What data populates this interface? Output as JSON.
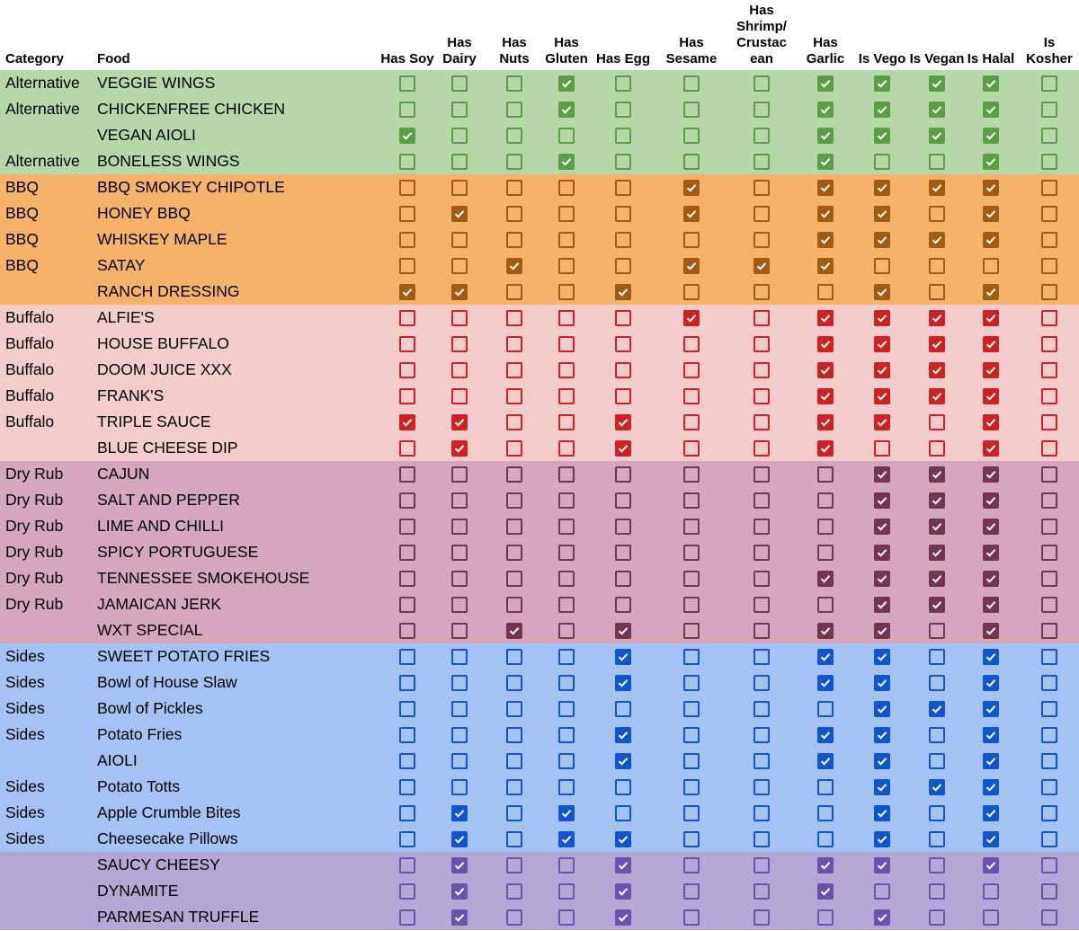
{
  "table": {
    "header": {
      "category": "Category",
      "food": "Food",
      "columns": [
        "Has Soy",
        "Has Dairy",
        "Has Nuts",
        "Has Gluten",
        "Has Egg",
        "Has Sesame",
        "Has Shrimp/Crustac ean",
        "Has Garlic",
        "Is Vego",
        "Is Vegan",
        "Is Halal",
        "Is Kosher"
      ]
    },
    "groups": [
      {
        "color": "#b6d7a8",
        "check_color": "#5a9e46",
        "rows": [
          {
            "category": "Alternative",
            "food": "VEGGIE WINGS",
            "checks": [
              0,
              0,
              0,
              1,
              0,
              0,
              0,
              1,
              1,
              1,
              1,
              0
            ]
          },
          {
            "category": "Alternative",
            "food": "CHICKENFREE CHICKEN",
            "checks": [
              0,
              0,
              0,
              1,
              0,
              0,
              0,
              1,
              1,
              1,
              1,
              0
            ]
          },
          {
            "category": null,
            "food": "VEGAN AIOLI",
            "checks": [
              1,
              0,
              0,
              0,
              0,
              0,
              0,
              1,
              1,
              1,
              1,
              0
            ]
          },
          {
            "category": "Alternative",
            "food": "BONELESS WINGS",
            "checks": [
              0,
              0,
              0,
              1,
              0,
              0,
              0,
              1,
              0,
              0,
              1,
              0
            ]
          }
        ]
      },
      {
        "color": "#f6b26b",
        "check_color": "#a45a10",
        "rows": [
          {
            "category": "BBQ",
            "food": "BBQ SMOKEY CHIPOTLE",
            "checks": [
              0,
              0,
              0,
              0,
              0,
              1,
              0,
              1,
              1,
              1,
              1,
              0
            ]
          },
          {
            "category": "BBQ",
            "food": "HONEY BBQ",
            "checks": [
              0,
              1,
              0,
              0,
              0,
              1,
              0,
              1,
              1,
              0,
              1,
              0
            ]
          },
          {
            "category": "BBQ",
            "food": "WHISKEY MAPLE",
            "checks": [
              0,
              0,
              0,
              0,
              0,
              0,
              0,
              1,
              1,
              1,
              1,
              0
            ]
          },
          {
            "category": "BBQ",
            "food": "SATAY",
            "checks": [
              0,
              0,
              1,
              0,
              0,
              1,
              1,
              1,
              0,
              0,
              0,
              0
            ]
          },
          {
            "category": null,
            "food": "RANCH DRESSING",
            "checks": [
              1,
              1,
              0,
              0,
              1,
              0,
              0,
              0,
              1,
              0,
              1,
              0
            ]
          }
        ]
      },
      {
        "color": "#f4cccc",
        "check_color": "#cc2222",
        "rows": [
          {
            "category": "Buffalo",
            "food": "ALFIE'S",
            "checks": [
              0,
              0,
              0,
              0,
              0,
              1,
              0,
              1,
              1,
              1,
              1,
              0
            ]
          },
          {
            "category": "Buffalo",
            "food": "HOUSE BUFFALO",
            "checks": [
              0,
              0,
              0,
              0,
              0,
              0,
              0,
              1,
              1,
              1,
              1,
              0
            ]
          },
          {
            "category": "Buffalo",
            "food": "DOOM JUICE XXX",
            "checks": [
              0,
              0,
              0,
              0,
              0,
              0,
              0,
              1,
              1,
              1,
              1,
              0
            ]
          },
          {
            "category": "Buffalo",
            "food": "FRANK'S",
            "checks": [
              0,
              0,
              0,
              0,
              0,
              0,
              0,
              1,
              1,
              1,
              1,
              0
            ]
          },
          {
            "category": "Buffalo",
            "food": "TRIPLE SAUCE",
            "checks": [
              1,
              1,
              0,
              0,
              1,
              0,
              0,
              1,
              1,
              0,
              1,
              0
            ]
          },
          {
            "category": null,
            "food": "BLUE CHEESE DIP",
            "checks": [
              0,
              1,
              0,
              0,
              1,
              0,
              0,
              1,
              0,
              0,
              1,
              0
            ]
          }
        ]
      },
      {
        "color": "#d5a6bd",
        "check_color": "#74354f",
        "rows": [
          {
            "category": "Dry Rub",
            "food": "CAJUN",
            "checks": [
              0,
              0,
              0,
              0,
              0,
              0,
              0,
              0,
              1,
              1,
              1,
              0
            ]
          },
          {
            "category": "Dry Rub",
            "food": "SALT AND PEPPER",
            "checks": [
              0,
              0,
              0,
              0,
              0,
              0,
              0,
              0,
              1,
              1,
              1,
              0
            ]
          },
          {
            "category": "Dry Rub",
            "food": "LIME AND CHILLI",
            "checks": [
              0,
              0,
              0,
              0,
              0,
              0,
              0,
              0,
              1,
              1,
              1,
              0
            ]
          },
          {
            "category": "Dry Rub",
            "food": "SPICY PORTUGUESE",
            "checks": [
              0,
              0,
              0,
              0,
              0,
              0,
              0,
              0,
              1,
              1,
              1,
              0
            ]
          },
          {
            "category": "Dry Rub",
            "food": "TENNESSEE SMOKEHOUSE",
            "checks": [
              0,
              0,
              0,
              0,
              0,
              0,
              0,
              1,
              1,
              1,
              1,
              0
            ]
          },
          {
            "category": "Dry Rub",
            "food": "JAMAICAN JERK",
            "checks": [
              0,
              0,
              0,
              0,
              0,
              0,
              0,
              0,
              1,
              1,
              1,
              0
            ]
          },
          {
            "category": null,
            "food": "WXT SPECIAL",
            "checks": [
              0,
              0,
              1,
              0,
              1,
              0,
              0,
              1,
              1,
              0,
              1,
              0
            ]
          }
        ]
      },
      {
        "color": "#a4c2f4",
        "check_color": "#1155cc",
        "rows": [
          {
            "category": "Sides",
            "food": "SWEET POTATO FRIES",
            "checks": [
              0,
              0,
              0,
              0,
              1,
              0,
              0,
              1,
              1,
              0,
              1,
              0
            ]
          },
          {
            "category": "Sides",
            "food": "Bowl of House Slaw",
            "checks": [
              0,
              0,
              0,
              0,
              1,
              0,
              0,
              1,
              1,
              0,
              1,
              0
            ]
          },
          {
            "category": "Sides",
            "food": "Bowl of Pickles",
            "checks": [
              0,
              0,
              0,
              0,
              0,
              0,
              0,
              0,
              1,
              1,
              1,
              0
            ]
          },
          {
            "category": "Sides",
            "food": "Potato Fries",
            "checks": [
              0,
              0,
              0,
              0,
              1,
              0,
              0,
              1,
              1,
              0,
              1,
              0
            ]
          },
          {
            "category": null,
            "food": "AIOLI",
            "checks": [
              0,
              0,
              0,
              0,
              1,
              0,
              0,
              1,
              1,
              0,
              1,
              0
            ]
          },
          {
            "category": "Sides",
            "food": "Potato Totts",
            "checks": [
              0,
              0,
              0,
              0,
              0,
              0,
              0,
              0,
              1,
              1,
              1,
              0
            ]
          },
          {
            "category": "Sides",
            "food": "Apple Crumble Bites",
            "checks": [
              0,
              1,
              0,
              1,
              0,
              0,
              0,
              0,
              1,
              0,
              1,
              0
            ]
          },
          {
            "category": "Sides",
            "food": "Cheesecake Pillows",
            "checks": [
              0,
              1,
              0,
              1,
              1,
              0,
              0,
              0,
              1,
              0,
              1,
              0
            ]
          }
        ]
      },
      {
        "color": "#b4a7d6",
        "check_color": "#6a52ad",
        "rows": [
          {
            "category": null,
            "food": "SAUCY CHEESY",
            "checks": [
              0,
              1,
              0,
              0,
              1,
              0,
              0,
              1,
              1,
              0,
              1,
              0
            ]
          },
          {
            "category": null,
            "food": "DYNAMITE",
            "checks": [
              0,
              1,
              0,
              0,
              1,
              0,
              0,
              1,
              0,
              0,
              0,
              0
            ]
          },
          {
            "category": null,
            "food": "PARMESAN TRUFFLE",
            "checks": [
              0,
              1,
              0,
              0,
              1,
              0,
              0,
              0,
              1,
              0,
              0,
              0
            ]
          }
        ]
      }
    ]
  }
}
